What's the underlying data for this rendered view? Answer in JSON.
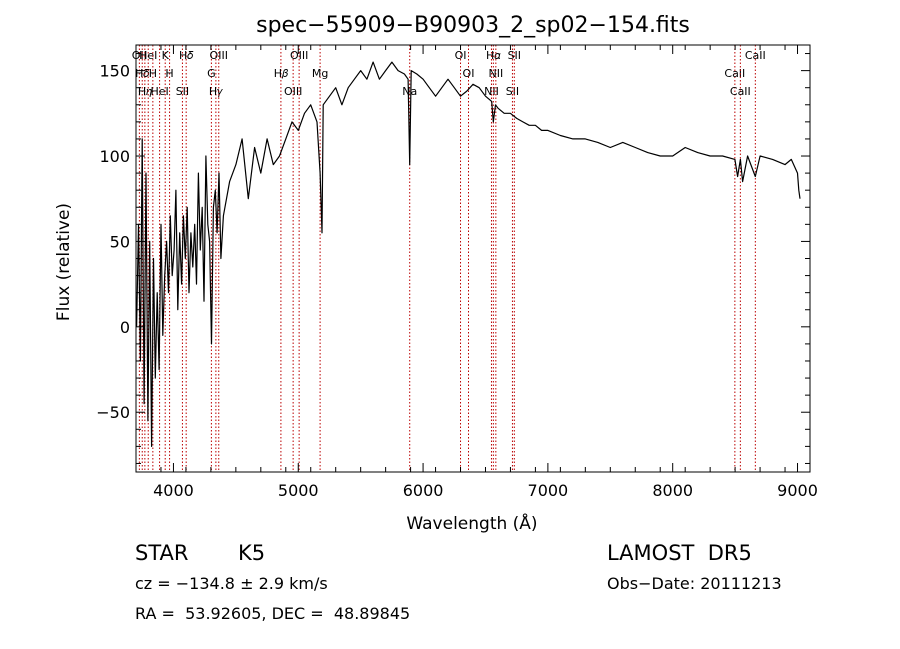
{
  "chart_data": {
    "type": "line",
    "title": "spec−55909−B90903_2_sp02−154.fits",
    "xlabel": "Wavelength (Å)",
    "ylabel": "Flux (relative)",
    "xlim": [
      3700,
      9100
    ],
    "ylim": [
      -85,
      165
    ],
    "x_ticks": [
      4000,
      5000,
      6000,
      7000,
      8000,
      9000
    ],
    "x_ticklabels": [
      "4000",
      "5000",
      "6000",
      "7000",
      "8000",
      "9000"
    ],
    "y_ticks": [
      -50,
      0,
      50,
      100,
      150
    ],
    "y_ticklabels": [
      "−50",
      "0",
      "50",
      "100",
      "150"
    ],
    "grid": false,
    "series": [
      {
        "color": "#000000",
        "x": [
          3705,
          3720,
          3735,
          3750,
          3765,
          3780,
          3795,
          3810,
          3825,
          3840,
          3855,
          3870,
          3885,
          3900,
          3915,
          3930,
          3945,
          3960,
          3975,
          3990,
          4005,
          4020,
          4035,
          4050,
          4065,
          4080,
          4095,
          4110,
          4125,
          4140,
          4155,
          4170,
          4185,
          4200,
          4215,
          4230,
          4245,
          4260,
          4275,
          4290,
          4305,
          4320,
          4335,
          4350,
          4365,
          4380,
          4400,
          4450,
          4500,
          4550,
          4600,
          4650,
          4700,
          4750,
          4800,
          4850,
          4900,
          4950,
          5000,
          5050,
          5100,
          5150,
          5175,
          5190,
          5200,
          5250,
          5300,
          5350,
          5400,
          5450,
          5500,
          5550,
          5600,
          5650,
          5700,
          5750,
          5800,
          5850,
          5880,
          5893,
          5905,
          5950,
          6000,
          6050,
          6100,
          6150,
          6200,
          6250,
          6300,
          6350,
          6400,
          6450,
          6500,
          6550,
          6563,
          6580,
          6600,
          6650,
          6700,
          6750,
          6800,
          6850,
          6900,
          6950,
          7000,
          7100,
          7200,
          7300,
          7400,
          7500,
          7600,
          7700,
          7800,
          7900,
          8000,
          8100,
          8200,
          8300,
          8400,
          8498,
          8520,
          8542,
          8560,
          8600,
          8662,
          8700,
          8800,
          8900,
          8950,
          9000,
          9010,
          9020
        ],
        "y": [
          0,
          60,
          -20,
          110,
          -45,
          90,
          -55,
          50,
          -70,
          40,
          -30,
          20,
          -25,
          60,
          -5,
          30,
          50,
          20,
          65,
          30,
          45,
          80,
          10,
          55,
          25,
          65,
          40,
          70,
          20,
          55,
          35,
          60,
          25,
          90,
          45,
          70,
          15,
          100,
          60,
          50,
          -10,
          70,
          80,
          55,
          90,
          40,
          65,
          85,
          95,
          110,
          75,
          105,
          90,
          110,
          95,
          100,
          110,
          120,
          115,
          125,
          130,
          120,
          90,
          55,
          130,
          135,
          140,
          130,
          140,
          145,
          150,
          145,
          155,
          145,
          150,
          155,
          150,
          148,
          145,
          95,
          150,
          148,
          145,
          140,
          135,
          140,
          145,
          140,
          135,
          138,
          142,
          140,
          135,
          132,
          120,
          130,
          128,
          125,
          125,
          122,
          120,
          118,
          118,
          115,
          115,
          112,
          110,
          110,
          108,
          105,
          108,
          105,
          102,
          100,
          100,
          105,
          102,
          100,
          100,
          98,
          88,
          98,
          85,
          100,
          88,
          100,
          98,
          95,
          98,
          90,
          80,
          75
        ]
      }
    ],
    "line_markers": [
      {
        "wavelength": 3727,
        "label": "OII"
      },
      {
        "wavelength": 3750,
        "label": "H𝛿"
      },
      {
        "wavelength": 3771,
        "label": "H𝜂"
      },
      {
        "wavelength": 3798,
        "label": "HeI"
      },
      {
        "wavelength": 3835,
        "label": "H"
      },
      {
        "wavelength": 3889,
        "label": "HeI"
      },
      {
        "wavelength": 3934,
        "label": "K"
      },
      {
        "wavelength": 3969,
        "label": "H"
      },
      {
        "wavelength": 4072,
        "label": "SII"
      },
      {
        "wavelength": 4102,
        "label": "H𝛿"
      },
      {
        "wavelength": 4304,
        "label": "G"
      },
      {
        "wavelength": 4340,
        "label": "H𝛾"
      },
      {
        "wavelength": 4363,
        "label": "OIII"
      },
      {
        "wavelength": 4861,
        "label": "H𝛽"
      },
      {
        "wavelength": 4959,
        "label": "OIII"
      },
      {
        "wavelength": 5007,
        "label": "OIII"
      },
      {
        "wavelength": 5175,
        "label": "Mg"
      },
      {
        "wavelength": 5893,
        "label": "Na"
      },
      {
        "wavelength": 6300,
        "label": "OI"
      },
      {
        "wavelength": 6364,
        "label": "OI"
      },
      {
        "wavelength": 6548,
        "label": "NII"
      },
      {
        "wavelength": 6563,
        "label": "H𝛼"
      },
      {
        "wavelength": 6583,
        "label": "NII"
      },
      {
        "wavelength": 6716,
        "label": "SII"
      },
      {
        "wavelength": 6731,
        "label": "SII"
      },
      {
        "wavelength": 8498,
        "label": "CaII"
      },
      {
        "wavelength": 8542,
        "label": "CaII"
      },
      {
        "wavelength": 8662,
        "label": "CaII"
      }
    ],
    "marker_color": "#bb0000"
  },
  "info": {
    "object_class": "STAR",
    "subclass": "K5",
    "survey": "LAMOST  DR5",
    "cz": "cz = −134.8 ± 2.9 km/s",
    "obs_date": "Obs−Date: 20111213",
    "coords": "RA =  53.92605, DEC =  48.89845"
  }
}
